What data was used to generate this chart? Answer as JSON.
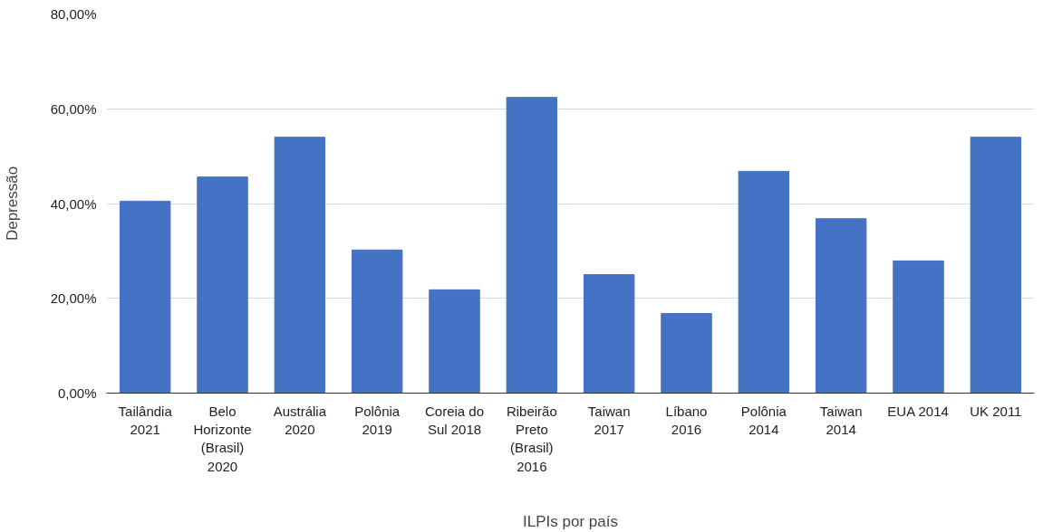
{
  "chart_data": {
    "type": "bar",
    "xlabel": "ILPIs por país",
    "ylabel": "Depressão",
    "categories": [
      "Tailândia\n2021",
      "Belo\nHorizonte\n(Brasil)\n2020",
      "Austrália\n2020",
      "Polônia\n2019",
      "Coreia do\nSul 2018",
      "Ribeirão\nPreto\n(Brasil)\n2016",
      "Taiwan\n2017",
      "Líbano\n2016",
      "Polônia\n2014",
      "Taiwan\n2014",
      "EUA 2014",
      "UK 2011"
    ],
    "values": [
      40.5,
      45.6,
      54.0,
      30.2,
      21.8,
      62.4,
      25.0,
      16.8,
      46.8,
      36.8,
      27.9,
      54.0
    ],
    "color": "#4472c4",
    "ylim": [
      0,
      80
    ],
    "yticks": [
      {
        "value": 0,
        "label": "0,00%"
      },
      {
        "value": 20,
        "label": "20,00%"
      },
      {
        "value": 40,
        "label": "40,00%"
      },
      {
        "value": 60,
        "label": "60,00%"
      },
      {
        "value": 80,
        "label": "80,00%"
      }
    ],
    "grid": "y"
  }
}
